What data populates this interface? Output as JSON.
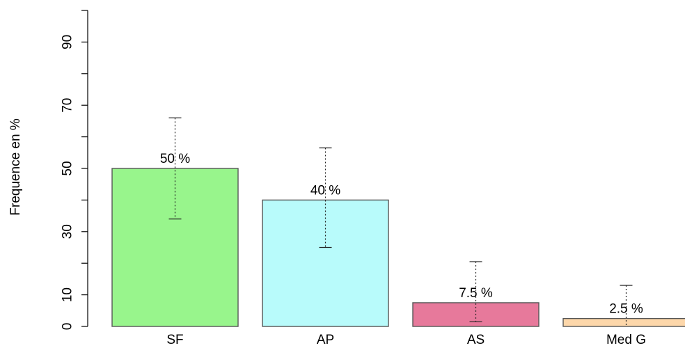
{
  "chart_data": {
    "type": "bar",
    "title": "",
    "xlabel": "",
    "ylabel": "Frequence en %",
    "categories": [
      "SF",
      "AP",
      "AS",
      "Med G"
    ],
    "values": [
      50,
      40,
      7.5,
      2.5
    ],
    "data_labels": [
      "50 %",
      "40 %",
      "7.5 %",
      "2.5 %"
    ],
    "error_lower": [
      34,
      25,
      1.5,
      0
    ],
    "error_upper": [
      66,
      56.5,
      20.5,
      13
    ],
    "colors": [
      "#98f58c",
      "#b8fbfb",
      "#e7799b",
      "#fdd7aa"
    ],
    "ylim": [
      0,
      100
    ],
    "yticks_major": [
      0,
      10,
      30,
      50,
      70,
      90
    ],
    "yticks_all": [
      0,
      10,
      20,
      30,
      40,
      50,
      60,
      70,
      80,
      90,
      100
    ],
    "grid": false,
    "legend": "none"
  }
}
